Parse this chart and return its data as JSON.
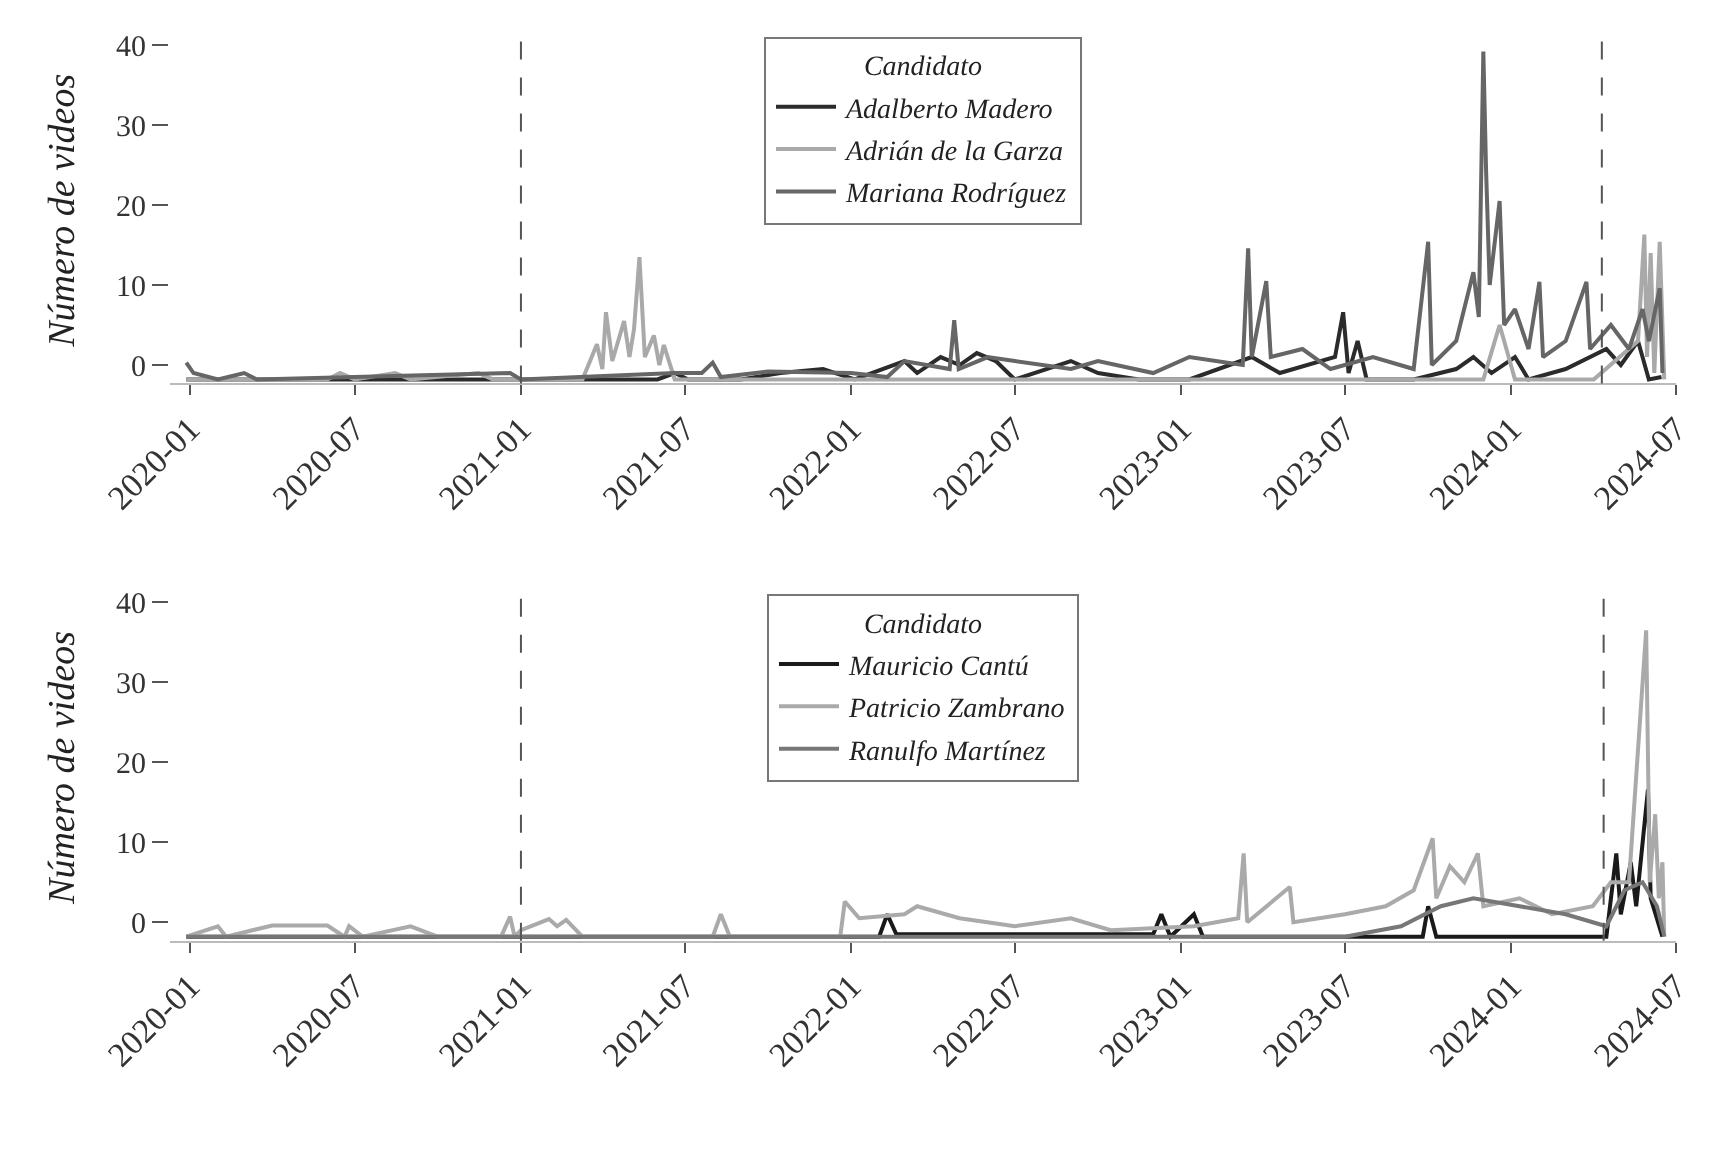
{
  "chart_data": [
    {
      "type": "line",
      "ylabel": "Número de videos",
      "legend_title": "Candidato",
      "legend": "top",
      "marker": "none",
      "line_style": "solid",
      "xlim": [
        "2019-12-10",
        "2024-07"
      ],
      "xticks": [
        "2020-01",
        "2020-07",
        "2021-01",
        "2021-07",
        "2022-01",
        "2022-07",
        "2023-01",
        "2023-07",
        "2024-01",
        "2024-07"
      ],
      "ylim": [
        -2.3,
        41
      ],
      "yticks": [
        0,
        10,
        20,
        30,
        40
      ],
      "ref_lines": [
        {
          "axis": "x",
          "value": "2021-01-01",
          "color": "#555555",
          "line_style": "dashed"
        },
        {
          "axis": "x",
          "value": "2024-04-10",
          "color": "#555555",
          "line_style": "dashed"
        }
      ],
      "series": [
        {
          "name": "Adalberto Madero",
          "color": "#2b2b2b",
          "x": [
            "2019-12-28",
            "2020-03-15",
            "2021-06-01",
            "2021-06-20",
            "2021-07-05",
            "2021-09-01",
            "2021-10-15",
            "2021-12-01",
            "2022-01-05",
            "2022-03-01",
            "2022-03-15",
            "2022-04-10",
            "2022-05-01",
            "2022-05-20",
            "2022-06-10",
            "2022-07-01",
            "2022-09-01",
            "2022-10-01",
            "2022-11-15",
            "2023-01-10",
            "2023-03-20",
            "2023-04-20",
            "2023-06-20",
            "2023-06-29",
            "2023-07-05",
            "2023-07-15",
            "2023-07-25",
            "2023-09-15",
            "2023-11-01",
            "2023-11-20",
            "2023-12-10",
            "2024-01-05",
            "2024-01-20",
            "2024-03-01",
            "2024-04-15",
            "2024-05-01",
            "2024-05-20",
            "2024-06-01",
            "2024-06-15"
          ],
          "values": [
            -1.8,
            -1.8,
            -1.8,
            -1.0,
            -1.8,
            -1.8,
            -1.0,
            -0.5,
            -1.8,
            0.5,
            -1.0,
            1.0,
            0.0,
            1.5,
            0.5,
            -1.8,
            0.5,
            -1.0,
            -1.8,
            -1.8,
            1.0,
            -1.0,
            1.0,
            6.6,
            -1.0,
            3.0,
            -1.8,
            -1.8,
            -0.5,
            1.0,
            -1.0,
            1.0,
            -1.8,
            -0.5,
            2.0,
            0.0,
            3.0,
            -1.8,
            -1.5
          ]
        },
        {
          "name": "Adrián de la Garza",
          "color": "#a9a9a9",
          "x": [
            "2019-12-28",
            "2020-06-01",
            "2020-06-15",
            "2020-07-01",
            "2020-08-15",
            "2020-09-01",
            "2020-11-15",
            "2020-12-01",
            "2021-03-10",
            "2021-03-26",
            "2021-04-01",
            "2021-04-05",
            "2021-04-12",
            "2021-04-25",
            "2021-05-01",
            "2021-05-06",
            "2021-05-12",
            "2021-05-18",
            "2021-05-28",
            "2021-06-03",
            "2021-06-08",
            "2021-06-20",
            "2023-12-01",
            "2023-12-19",
            "2024-01-05",
            "2024-04-01",
            "2024-05-20",
            "2024-05-27",
            "2024-05-30",
            "2024-06-03",
            "2024-06-07",
            "2024-06-13",
            "2024-06-18"
          ],
          "values": [
            -1.8,
            -1.8,
            -1.0,
            -1.8,
            -1.0,
            -1.8,
            -1.0,
            -1.8,
            -1.8,
            2.6,
            -0.5,
            6.6,
            0.5,
            5.5,
            1.0,
            4.5,
            13.5,
            1.0,
            3.7,
            0.0,
            2.5,
            -1.8,
            -1.8,
            5.0,
            -1.8,
            -1.8,
            3.0,
            16.3,
            1.0,
            14.0,
            -1.0,
            15.4,
            -1.8
          ]
        },
        {
          "name": "Mariana Rodríguez",
          "color": "#666666",
          "x": [
            "2019-12-28",
            "2020-01-05",
            "2020-02-01",
            "2020-03-01",
            "2020-03-15",
            "2020-12-20",
            "2021-01-01",
            "2021-06-20",
            "2021-07-20",
            "2021-08-01",
            "2021-08-10",
            "2021-10-01",
            "2022-01-01",
            "2022-02-10",
            "2022-03-01",
            "2022-04-20",
            "2022-04-25",
            "2022-04-30",
            "2022-06-01",
            "2022-07-01",
            "2022-09-01",
            "2022-10-01",
            "2022-12-01",
            "2023-01-10",
            "2023-03-10",
            "2023-03-16",
            "2023-03-20",
            "2023-04-05",
            "2023-04-10",
            "2023-05-15",
            "2023-06-15",
            "2023-08-01",
            "2023-09-15",
            "2023-10-01",
            "2023-10-05",
            "2023-11-01",
            "2023-11-12",
            "2023-11-20",
            "2023-11-26",
            "2023-12-01",
            "2023-12-04",
            "2023-12-08",
            "2023-12-19",
            "2023-12-24",
            "2024-01-05",
            "2024-01-20",
            "2024-02-01",
            "2024-02-05",
            "2024-03-01",
            "2024-03-24",
            "2024-03-28",
            "2024-04-20",
            "2024-05-10",
            "2024-05-25",
            "2024-06-01",
            "2024-06-13",
            "2024-06-16"
          ],
          "values": [
            0.3,
            -1.0,
            -1.8,
            -1.0,
            -1.8,
            -1.0,
            -1.8,
            -1.0,
            -1.0,
            0.3,
            -1.5,
            -0.8,
            -1.0,
            -1.5,
            0.5,
            -0.5,
            5.6,
            -0.5,
            1.0,
            0.5,
            -0.5,
            0.5,
            -1.0,
            1.0,
            0.0,
            14.6,
            1.0,
            10.5,
            1.0,
            2.0,
            -0.5,
            1.0,
            -0.5,
            15.4,
            0.0,
            3.0,
            8.0,
            11.6,
            6.0,
            39.2,
            24.4,
            10.0,
            20.5,
            5.0,
            7.0,
            2.0,
            10.4,
            1.0,
            3.0,
            10.4,
            2.0,
            5.0,
            2.0,
            7.0,
            3.0,
            9.6,
            -1.0
          ]
        }
      ]
    },
    {
      "type": "line",
      "ylabel": "Número de videos",
      "legend_title": "Candidato",
      "legend": "top",
      "marker": "none",
      "line_style": "solid",
      "xlim": [
        "2019-12-10",
        "2024-07"
      ],
      "xticks": [
        "2020-01",
        "2020-07",
        "2021-01",
        "2021-07",
        "2022-01",
        "2022-07",
        "2023-01",
        "2023-07",
        "2024-01",
        "2024-07"
      ],
      "ylim": [
        -2.3,
        41
      ],
      "yticks": [
        0,
        10,
        20,
        30,
        40
      ],
      "ref_lines": [
        {
          "axis": "x",
          "value": "2021-01-01",
          "color": "#555555",
          "line_style": "dashed"
        },
        {
          "axis": "x",
          "value": "2024-04-12",
          "color": "#555555",
          "line_style": "dashed"
        }
      ],
      "series": [
        {
          "name": "Mauricio Cantú",
          "color": "#1a1a1a",
          "x": [
            "2019-12-28",
            "2022-02-01",
            "2022-02-10",
            "2022-02-20",
            "2022-12-01",
            "2022-12-10",
            "2022-12-20",
            "2023-01-15",
            "2023-01-25",
            "2023-09-25",
            "2023-10-01",
            "2023-10-10",
            "2024-04-15",
            "2024-04-26",
            "2024-05-01",
            "2024-05-12",
            "2024-05-18",
            "2024-05-31",
            "2024-06-03",
            "2024-06-16"
          ],
          "values": [
            -1.8,
            -1.8,
            1.0,
            -1.5,
            -1.5,
            1.0,
            -1.8,
            1.0,
            -1.8,
            -1.8,
            2.0,
            -1.8,
            -1.8,
            8.6,
            1.0,
            7.5,
            2.0,
            16.6,
            3.0,
            -1.8
          ]
        },
        {
          "name": "Patricio Zambrano",
          "color": "#aaaaaa",
          "x": [
            "2019-12-28",
            "2020-02-01",
            "2020-02-10",
            "2020-04-01",
            "2020-06-01",
            "2020-06-20",
            "2020-06-25",
            "2020-07-10",
            "2020-09-01",
            "2020-10-01",
            "2020-12-10",
            "2020-12-20",
            "2020-12-25",
            "2021-01-01",
            "2021-02-01",
            "2021-02-10",
            "2021-02-20",
            "2021-03-10",
            "2021-08-01",
            "2021-08-10",
            "2021-08-20",
            "2021-12-20",
            "2021-12-25",
            "2022-01-10",
            "2022-03-01",
            "2022-03-15",
            "2022-05-01",
            "2022-07-01",
            "2022-09-01",
            "2022-10-15",
            "2023-01-15",
            "2023-03-05",
            "2023-03-11",
            "2023-03-15",
            "2023-05-01",
            "2023-05-05",
            "2023-07-01",
            "2023-08-15",
            "2023-09-15",
            "2023-10-06",
            "2023-10-10",
            "2023-10-25",
            "2023-11-10",
            "2023-11-25",
            "2023-12-01",
            "2024-01-10",
            "2024-02-15",
            "2024-03-31",
            "2024-04-20",
            "2024-05-10",
            "2024-05-29",
            "2024-06-02",
            "2024-06-08",
            "2024-06-12",
            "2024-06-16",
            "2024-06-18"
          ],
          "values": [
            -1.8,
            -0.5,
            -1.8,
            -0.4,
            -0.4,
            -1.8,
            -0.5,
            -1.8,
            -0.5,
            -1.8,
            -1.8,
            0.7,
            -1.8,
            -1.0,
            0.4,
            -0.5,
            0.3,
            -1.8,
            -1.8,
            1.0,
            -1.8,
            -1.8,
            2.6,
            0.5,
            1.0,
            2.0,
            0.5,
            -0.5,
            0.5,
            -1.0,
            -0.5,
            0.5,
            8.6,
            0.0,
            4.4,
            0.0,
            1.0,
            2.0,
            4.0,
            10.5,
            3.0,
            7.0,
            5.0,
            8.6,
            2.0,
            3.0,
            1.0,
            2.0,
            5.0,
            5.0,
            36.5,
            5.0,
            13.5,
            3.0,
            7.5,
            -1.8
          ]
        },
        {
          "name": "Ranulfo Martínez",
          "color": "#777777",
          "x": [
            "2019-12-28",
            "2023-07-01",
            "2023-09-01",
            "2023-10-15",
            "2023-11-20",
            "2024-01-10",
            "2024-03-01",
            "2024-04-15",
            "2024-05-05",
            "2024-05-25",
            "2024-06-10",
            "2024-06-18"
          ],
          "values": [
            -1.8,
            -1.8,
            -0.5,
            2.0,
            3.0,
            2.0,
            1.0,
            -0.5,
            4.0,
            5.0,
            2.0,
            -1.8
          ]
        }
      ]
    }
  ]
}
